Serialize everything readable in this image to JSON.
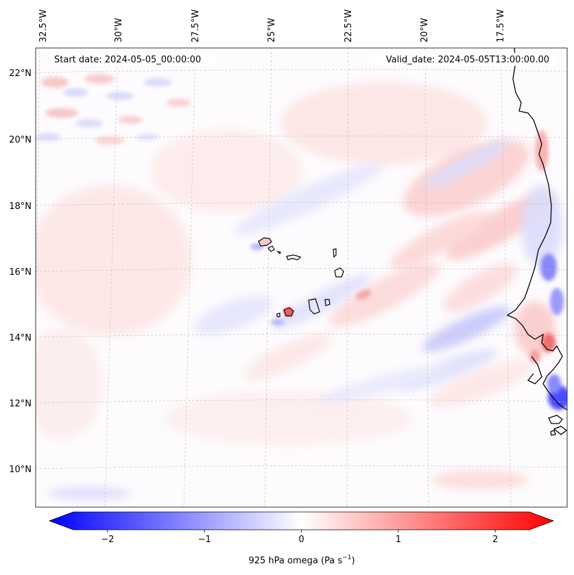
{
  "header": {
    "start_date": "Start date: 2024-05-05_00:00:00",
    "valid_date": "Valid_date: 2024-05-05T13:00:00.00"
  },
  "map": {
    "lon_ticks": [
      "32.5°W",
      "30°W",
      "27.5°W",
      "25°W",
      "22.5°W",
      "20°W",
      "17.5°W"
    ],
    "lat_ticks": [
      "22°N",
      "20°N",
      "18°N",
      "16°N",
      "14°N",
      "12°N",
      "10°N"
    ],
    "colors": {
      "negative": "#0000ff",
      "zero": "#ffffff",
      "positive": "#ff0000",
      "coastline": "#000000",
      "gridline": "#b0b0b0"
    }
  },
  "colorbar": {
    "ticks": [
      "−2",
      "−1",
      "0",
      "1",
      "2"
    ],
    "tick_values": [
      -2,
      -1,
      0,
      1,
      2
    ],
    "range": [
      -2.6,
      2.6
    ],
    "label_text": "925 hPa omega (Pa s",
    "label_unit_sup": "−1",
    "label_close": ")"
  }
}
